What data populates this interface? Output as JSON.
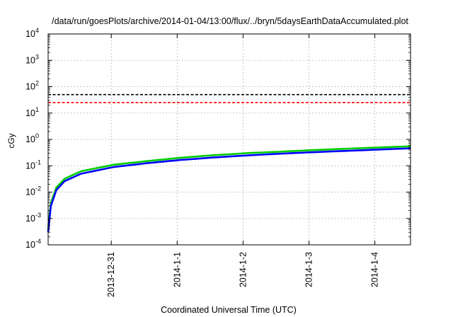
{
  "chart_data": {
    "type": "line",
    "title": "/data/run/goesPlots/archive/2014-01-04/13:00/flux/../bryn/5daysEarthDataAccumulated.plot",
    "xlabel": "Coordinated Universal Time (UTC)",
    "ylabel": "cGy",
    "y_scale": "log",
    "ylim": [
      0.0001,
      10000
    ],
    "xlim": [
      "2013-12-30T01:00",
      "2014-01-04T13:00"
    ],
    "x_ticks": [
      {
        "label": "2013-12-31",
        "value": "2013-12-31T00:00"
      },
      {
        "label": "2014-1-1",
        "value": "2014-01-01T00:00"
      },
      {
        "label": "2014-1-2",
        "value": "2014-01-02T00:00"
      },
      {
        "label": "2014-1-3",
        "value": "2014-01-03T00:00"
      },
      {
        "label": "2014-1-4",
        "value": "2014-01-04T00:00"
      }
    ],
    "y_ticks": [
      {
        "base": "10",
        "exp": "-4",
        "value": 0.0001
      },
      {
        "base": "10",
        "exp": "-3",
        "value": 0.001
      },
      {
        "base": "10",
        "exp": "-2",
        "value": 0.01
      },
      {
        "base": "10",
        "exp": "-1",
        "value": 0.1
      },
      {
        "base": "10",
        "exp": "0",
        "value": 1
      },
      {
        "base": "10",
        "exp": "1",
        "value": 10
      },
      {
        "base": "10",
        "exp": "2",
        "value": 100
      },
      {
        "base": "10",
        "exp": "3",
        "value": 1000
      },
      {
        "base": "10",
        "exp": "4",
        "value": 10000
      }
    ],
    "grid": true,
    "reference_lines": [
      {
        "value": 50,
        "color": "#000000",
        "style": "dashed"
      },
      {
        "value": 25,
        "color": "#ff0000",
        "style": "dashed"
      }
    ],
    "series": [
      {
        "color": "#00cc00",
        "x": [
          "2013-12-30T01:00",
          "2013-12-30T02:00",
          "2013-12-30T04:00",
          "2013-12-30T07:00",
          "2013-12-30T13:00",
          "2013-12-31T01:00",
          "2013-12-31T13:00",
          "2014-01-01T01:00",
          "2014-01-01T13:00",
          "2014-01-02T01:00",
          "2014-01-02T13:00",
          "2014-01-03T01:00",
          "2014-01-03T13:00",
          "2014-01-04T01:00",
          "2014-01-04T13:00"
        ],
        "y": [
          0.0004,
          0.004,
          0.015,
          0.032,
          0.062,
          0.11,
          0.15,
          0.2,
          0.25,
          0.3,
          0.34,
          0.39,
          0.44,
          0.49,
          0.55
        ]
      },
      {
        "color": "#0000ff",
        "x": [
          "2013-12-30T01:00",
          "2013-12-30T02:00",
          "2013-12-30T04:00",
          "2013-12-30T07:00",
          "2013-12-30T13:00",
          "2013-12-31T01:00",
          "2013-12-31T13:00",
          "2014-01-01T01:00",
          "2014-01-01T13:00",
          "2014-01-02T01:00",
          "2014-01-02T13:00",
          "2014-01-03T01:00",
          "2014-01-03T13:00",
          "2014-01-04T01:00",
          "2014-01-04T13:00"
        ],
        "y": [
          0.0003,
          0.003,
          0.012,
          0.026,
          0.05,
          0.09,
          0.125,
          0.165,
          0.205,
          0.245,
          0.285,
          0.325,
          0.365,
          0.41,
          0.46
        ]
      }
    ]
  }
}
